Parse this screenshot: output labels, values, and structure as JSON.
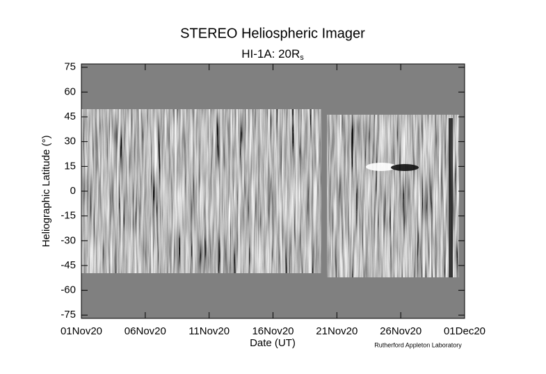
{
  "chart_data": {
    "type": "image",
    "title": "STEREO Heliospheric Imager",
    "subtitle": {
      "text": "HI-1A: 20R",
      "subscript": "s"
    },
    "x_label": "Date (UT)",
    "y_label": "Heliographic Latitude (°)",
    "credit": "Rutherford Appleton Laboratory",
    "xlim": [
      "2020-11-01",
      "2020-12-01"
    ],
    "xticks": [
      {
        "value": "2020-11-01",
        "label": "01Nov20"
      },
      {
        "value": "2020-11-06",
        "label": "06Nov20"
      },
      {
        "value": "2020-11-11",
        "label": "11Nov20"
      },
      {
        "value": "2020-11-16",
        "label": "16Nov20"
      },
      {
        "value": "2020-11-21",
        "label": "21Nov20"
      },
      {
        "value": "2020-11-26",
        "label": "26Nov20"
      },
      {
        "value": "2020-12-01",
        "label": "01Dec20"
      }
    ],
    "ylim": [
      -77,
      77
    ],
    "yticks": [
      75,
      60,
      45,
      30,
      15,
      0,
      -15,
      -30,
      -45,
      -60,
      -75
    ],
    "background": "#808080"
  }
}
